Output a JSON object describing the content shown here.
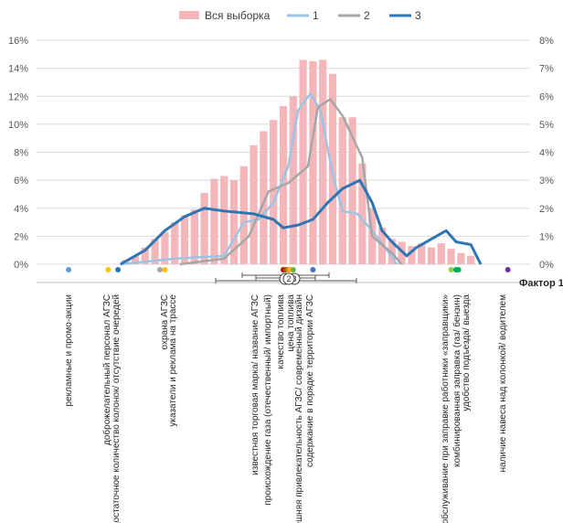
{
  "chart_data": {
    "type": "bar",
    "legend": {
      "position": "top",
      "items": [
        {
          "name": "Вся выборка",
          "color": "#F4B6B9",
          "kind": "bar"
        },
        {
          "name": "1",
          "color": "#9DC3E6",
          "kind": "line"
        },
        {
          "name": "2",
          "color": "#A6A6A6",
          "kind": "line"
        },
        {
          "name": "3",
          "color": "#2E75B6",
          "kind": "line"
        }
      ]
    },
    "left_axis": {
      "ylim": [
        0,
        16
      ],
      "ticks": [
        "0%",
        "2%",
        "4%",
        "6%",
        "8%",
        "10%",
        "12%",
        "14%",
        "16%"
      ]
    },
    "right_axis": {
      "ylim": [
        0,
        8
      ],
      "ticks": [
        "0%",
        "1%",
        "2%",
        "3%",
        "4%",
        "5%",
        "6%",
        "7%",
        "8%"
      ]
    },
    "xlabel": "Фактор 1",
    "grid": true,
    "histogram": {
      "name": "Вся выборка",
      "values": [
        0.3,
        0.6,
        1.2,
        1.8,
        2.3,
        3.0,
        3.5,
        3.9,
        5.1,
        6.1,
        6.3,
        6.0,
        7.0,
        8.5,
        9.5,
        10.3,
        11.3,
        12.0,
        14.6,
        14.5,
        14.6,
        13.6,
        10.5,
        10.5,
        7.2,
        4.0,
        2.6,
        1.8,
        1.6,
        1.3,
        1.5,
        1.2,
        1.5,
        1.1,
        0.8,
        0.6
      ]
    },
    "series": [
      {
        "name": "1",
        "color": "#9DC3E6",
        "points": [
          [
            0.17,
            0
          ],
          [
            0.28,
            0.2
          ],
          [
            0.38,
            0.3
          ],
          [
            0.42,
            1.5
          ],
          [
            0.45,
            1.6
          ],
          [
            0.48,
            2.2
          ],
          [
            0.51,
            3.5
          ],
          [
            0.53,
            5.5
          ],
          [
            0.555,
            6.1
          ],
          [
            0.575,
            5.5
          ],
          [
            0.6,
            3.2
          ],
          [
            0.62,
            1.9
          ],
          [
            0.65,
            1.8
          ],
          [
            0.68,
            1.2
          ],
          [
            0.71,
            0.5
          ],
          [
            0.73,
            0
          ]
        ]
      },
      {
        "name": "2",
        "color": "#A6A6A6",
        "points": [
          [
            0.29,
            0
          ],
          [
            0.38,
            0.2
          ],
          [
            0.43,
            1.0
          ],
          [
            0.47,
            2.6
          ],
          [
            0.51,
            2.9
          ],
          [
            0.53,
            3.2
          ],
          [
            0.55,
            3.5
          ],
          [
            0.57,
            5.6
          ],
          [
            0.595,
            5.9
          ],
          [
            0.62,
            5.3
          ],
          [
            0.66,
            3.8
          ],
          [
            0.68,
            1.0
          ],
          [
            0.72,
            0.4
          ],
          [
            0.74,
            0
          ]
        ]
      },
      {
        "name": "3",
        "color": "#2E75B6",
        "points": [
          [
            0.17,
            0
          ],
          [
            0.22,
            0.5
          ],
          [
            0.26,
            1.2
          ],
          [
            0.3,
            1.7
          ],
          [
            0.34,
            2.0
          ],
          [
            0.38,
            1.9
          ],
          [
            0.44,
            1.8
          ],
          [
            0.48,
            1.6
          ],
          [
            0.5,
            1.3
          ],
          [
            0.53,
            1.4
          ],
          [
            0.56,
            1.6
          ],
          [
            0.59,
            2.2
          ],
          [
            0.62,
            2.7
          ],
          [
            0.655,
            3.0
          ],
          [
            0.68,
            2.2
          ],
          [
            0.7,
            1.2
          ],
          [
            0.72,
            0.8
          ],
          [
            0.75,
            0.3
          ],
          [
            0.77,
            0.6
          ],
          [
            0.8,
            0.9
          ],
          [
            0.83,
            1.2
          ],
          [
            0.85,
            0.8
          ],
          [
            0.88,
            0.7
          ],
          [
            0.9,
            0
          ]
        ]
      }
    ],
    "factors": [
      {
        "label": "рекламные и промо-акции",
        "color": "#5B9BD5"
      },
      {
        "label": "доброжелательный персонал АГЗС",
        "color": "#FFC000"
      },
      {
        "label": "достаточное количество колонок/ отсутствие очередей",
        "color": "#2E75B6"
      },
      {
        "label": "охрана АГЗС",
        "color": "#A5A5A5"
      },
      {
        "label": "указатели и реклама на трассе",
        "color": "#FFC000"
      },
      {
        "label": "известная торговая марка/ название АГЗС",
        "color": "#C00000"
      },
      {
        "label": "происхождение газа (отечественный/ импортный)",
        "color": "#7F6000"
      },
      {
        "label": "качество топлива",
        "color": "#ED7D31"
      },
      {
        "label": "цена топлива",
        "color": "#FFC000"
      },
      {
        "label": "внешняя привлекательность АГЗС/ современный дизайн",
        "color": "#70AD47"
      },
      {
        "label": "содержание в порядке территории АГЗС",
        "color": "#4472C4"
      },
      {
        "label": "обслуживание при заправке работники «заправщики»",
        "color": "#92D050"
      },
      {
        "label": "комбинированная заправка (газ/ бензин)",
        "color": "#00B050"
      },
      {
        "label": "удобство подъезда/ выезда",
        "color": "#00B050"
      },
      {
        "label": "наличие навеса над колонкой/ водителем",
        "color": "#7030A0"
      }
    ],
    "cluster_markers": [
      "1",
      "3",
      "2"
    ]
  }
}
